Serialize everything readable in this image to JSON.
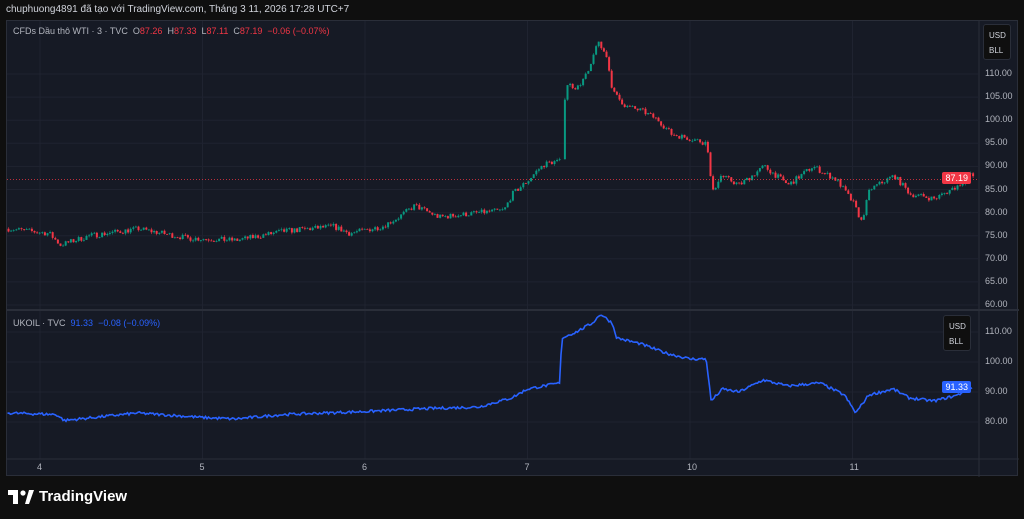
{
  "header": {
    "caption": "chuphuong4891 đã tạo với TradingView.com, Tháng 3 11, 2026 17:28 UTC+7"
  },
  "top_pane": {
    "symbol": "CFDs Dầu thô WTI · 3 · TVC",
    "o_label": "O",
    "o": "87.26",
    "h_label": "H",
    "h": "87.33",
    "l_label": "L",
    "l": "87.11",
    "c_label": "C",
    "c": "87.19",
    "change": "−0.06 (−0.07%)",
    "currency": "USD",
    "unit": "BLL",
    "last_price": "87.19",
    "ticks": [
      "110.00",
      "105.00",
      "100.00",
      "95.00",
      "90.00",
      "85.00",
      "80.00",
      "75.00",
      "70.00",
      "65.00",
      "60.00"
    ]
  },
  "bottom_pane": {
    "symbol": "UKOIL · TVC",
    "price": "91.33",
    "change": "−0.08 (−0.09%)",
    "currency": "USD",
    "unit": "BLL",
    "last_price": "91.33",
    "ticks": [
      "110.00",
      "100.00",
      "90.00",
      "80.00"
    ]
  },
  "time_axis": [
    "4",
    "5",
    "6",
    "7",
    "10",
    "11"
  ],
  "footer": {
    "brand": "TradingView"
  },
  "colors": {
    "up": "#089981",
    "down": "#f23645",
    "line": "#2962ff",
    "bg": "#161a25"
  },
  "chart_data": [
    {
      "type": "candlestick",
      "name": "CFDs Dầu thô WTI",
      "x_unit": "session index (0=4,1=5,2=6,3=7,4=10,5=11)",
      "ylim": [
        58,
        120
      ],
      "keyframes": [
        [
          -0.2,
          76.5
        ],
        [
          0.05,
          75.5
        ],
        [
          0.12,
          73
        ],
        [
          0.3,
          75
        ],
        [
          0.6,
          76.5
        ],
        [
          0.9,
          74.5
        ],
        [
          1.2,
          74
        ],
        [
          1.5,
          76
        ],
        [
          1.8,
          77
        ],
        [
          1.9,
          75.5
        ],
        [
          2.1,
          77
        ],
        [
          2.2,
          79
        ],
        [
          2.3,
          81.5
        ],
        [
          2.45,
          79
        ],
        [
          2.7,
          80
        ],
        [
          2.85,
          80.5
        ],
        [
          2.9,
          84
        ],
        [
          3.0,
          87
        ],
        [
          3.05,
          89
        ],
        [
          3.1,
          90.5
        ],
        [
          3.15,
          91
        ],
        [
          3.2,
          91
        ],
        [
          3.21,
          98
        ],
        [
          3.23,
          108
        ],
        [
          3.3,
          107
        ],
        [
          3.38,
          111
        ],
        [
          3.42,
          117
        ],
        [
          3.48,
          114
        ],
        [
          3.52,
          106
        ],
        [
          3.6,
          103
        ],
        [
          3.7,
          102
        ],
        [
          3.8,
          100
        ],
        [
          3.88,
          97
        ],
        [
          4.0,
          96
        ],
        [
          4.1,
          95
        ],
        [
          4.13,
          84
        ],
        [
          4.18,
          88
        ],
        [
          4.3,
          86
        ],
        [
          4.45,
          90
        ],
        [
          4.6,
          86
        ],
        [
          4.75,
          90
        ],
        [
          4.9,
          87
        ],
        [
          5.0,
          82
        ],
        [
          5.05,
          78
        ],
        [
          5.1,
          85
        ],
        [
          5.25,
          88
        ],
        [
          5.35,
          84
        ],
        [
          5.5,
          83
        ],
        [
          5.65,
          86
        ],
        [
          5.72,
          88.5
        ],
        [
          5.74,
          87.19
        ]
      ]
    },
    {
      "type": "line",
      "name": "UKOIL",
      "ylim": [
        76,
        122
      ],
      "keyframes": [
        [
          -0.2,
          83
        ],
        [
          0.1,
          82.5
        ],
        [
          0.15,
          80.5
        ],
        [
          0.6,
          83
        ],
        [
          1.0,
          81.5
        ],
        [
          1.2,
          81
        ],
        [
          1.5,
          82.5
        ],
        [
          2.0,
          83.5
        ],
        [
          2.4,
          84.5
        ],
        [
          2.7,
          85
        ],
        [
          2.9,
          88
        ],
        [
          3.0,
          91
        ],
        [
          3.2,
          93
        ],
        [
          3.21,
          108
        ],
        [
          3.3,
          110
        ],
        [
          3.4,
          113
        ],
        [
          3.45,
          116
        ],
        [
          3.52,
          113
        ],
        [
          3.55,
          108
        ],
        [
          3.7,
          106
        ],
        [
          3.85,
          103
        ],
        [
          4.0,
          101
        ],
        [
          4.1,
          101
        ],
        [
          4.13,
          87
        ],
        [
          4.2,
          91
        ],
        [
          4.3,
          90
        ],
        [
          4.45,
          94
        ],
        [
          4.6,
          92
        ],
        [
          4.8,
          93
        ],
        [
          4.95,
          89
        ],
        [
          5.02,
          83
        ],
        [
          5.1,
          89
        ],
        [
          5.25,
          91
        ],
        [
          5.35,
          88
        ],
        [
          5.5,
          87
        ],
        [
          5.65,
          89
        ],
        [
          5.72,
          91.5
        ],
        [
          5.74,
          91.33
        ]
      ]
    }
  ]
}
